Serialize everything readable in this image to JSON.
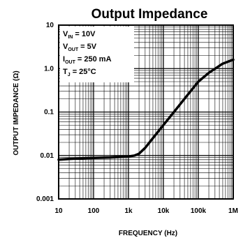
{
  "chart_data": {
    "type": "line",
    "title": "Output Impedance",
    "xlabel": "FREQUENCY (Hz)",
    "ylabel": "OUTPUT IMPEDANCE (Ω)",
    "x_scale": "log",
    "y_scale": "log",
    "xlim": [
      10,
      1000000
    ],
    "ylim": [
      0.001,
      10
    ],
    "x_ticks": [
      {
        "value": 10,
        "label": "10"
      },
      {
        "value": 100,
        "label": "100"
      },
      {
        "value": 1000,
        "label": "1k"
      },
      {
        "value": 10000,
        "label": "10k"
      },
      {
        "value": 100000,
        "label": "100k"
      },
      {
        "value": 1000000,
        "label": "1M"
      }
    ],
    "y_ticks": [
      {
        "value": 10,
        "label": "10"
      },
      {
        "value": 1,
        "label": "1.0"
      },
      {
        "value": 0.1,
        "label": "0.1"
      },
      {
        "value": 0.01,
        "label": "0.01"
      },
      {
        "value": 0.001,
        "label": "0.001"
      }
    ],
    "grid": true,
    "conditions": [
      {
        "main": "V",
        "sub": "IN",
        "rest": " = 10V"
      },
      {
        "main": "V",
        "sub": "OUT",
        "rest": " = 5V"
      },
      {
        "main": "I",
        "sub": "OUT",
        "rest": " = 250 mA"
      },
      {
        "main": "T",
        "sub": "J",
        "rest": " = 25°C"
      }
    ],
    "series": [
      {
        "color": "#000000",
        "x": [
          10,
          30,
          100,
          300,
          1000,
          1500,
          2000,
          3000,
          5000,
          10000,
          20000,
          50000,
          100000,
          200000,
          500000,
          1000000
        ],
        "y": [
          0.008,
          0.0085,
          0.0088,
          0.009,
          0.0095,
          0.01,
          0.011,
          0.015,
          0.025,
          0.05,
          0.1,
          0.25,
          0.5,
          0.8,
          1.3,
          1.6
        ]
      }
    ]
  }
}
